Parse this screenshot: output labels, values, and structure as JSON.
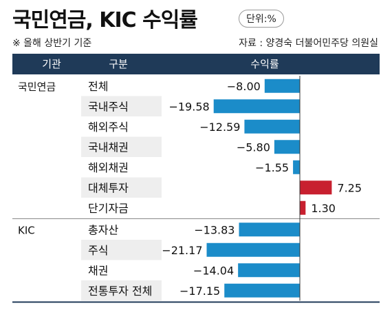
{
  "title": "국민연금, KIC 수익률",
  "unit": "단위:%",
  "note": "※ 올해 상반기 기준",
  "source": "자료 : 양경숙 더불어민주당 의원실",
  "header": {
    "col1": "기관",
    "col2": "구분",
    "col3": "수익률"
  },
  "colors": {
    "header_bg": "#1f3a58",
    "negative_bar": "#1b8cc9",
    "positive_bar": "#c8202f",
    "alt_row": "#eeeeee"
  },
  "chart_data": {
    "type": "bar",
    "orientation": "horizontal",
    "groups": [
      {
        "name": "국민연금",
        "rows": [
          {
            "label": "전체",
            "value": -8.0,
            "value_label": "−8.00"
          },
          {
            "label": "국내주식",
            "value": -19.58,
            "value_label": "−19.58"
          },
          {
            "label": "해외주식",
            "value": -12.59,
            "value_label": "−12.59"
          },
          {
            "label": "국내채권",
            "value": -5.8,
            "value_label": "−5.80"
          },
          {
            "label": "해외채권",
            "value": -1.55,
            "value_label": "−1.55"
          },
          {
            "label": "대체투자",
            "value": 7.25,
            "value_label": "7.25"
          },
          {
            "label": "단기자금",
            "value": 1.3,
            "value_label": "1.30"
          }
        ]
      },
      {
        "name": "KIC",
        "rows": [
          {
            "label": "총자산",
            "value": -13.83,
            "value_label": "−13.83"
          },
          {
            "label": "주식",
            "value": -21.17,
            "value_label": "−21.17"
          },
          {
            "label": "채권",
            "value": -14.04,
            "value_label": "−14.04"
          },
          {
            "label": "전통투자 전체",
            "value": -17.15,
            "value_label": "−17.15"
          }
        ]
      }
    ]
  }
}
